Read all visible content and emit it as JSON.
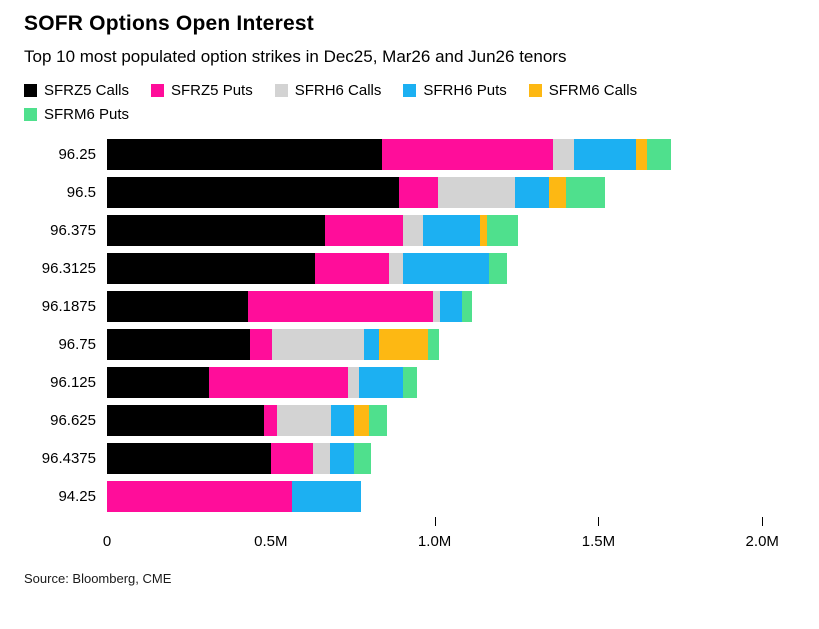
{
  "header": {
    "title": "SOFR Options Open Interest",
    "subtitle": "Top 10 most populated option strikes in Dec25, Mar26 and Jun26 tenors"
  },
  "source": "Source: Bloomberg, CME",
  "chart_data": {
    "type": "bar",
    "orientation": "horizontal",
    "stacked": true,
    "legend_position": "top",
    "grid": false,
    "categories": [
      "96.25",
      "96.5",
      "96.375",
      "96.3125",
      "96.1875",
      "96.75",
      "96.125",
      "96.625",
      "96.4375",
      "94.25"
    ],
    "series": [
      {
        "name": "SFRZ5 Calls",
        "color": "#000000",
        "values": [
          840000,
          890000,
          665000,
          635000,
          430000,
          435000,
          310000,
          480000,
          500000,
          0
        ]
      },
      {
        "name": "SFRZ5 Puts",
        "color": "#ff0d9a",
        "values": [
          520000,
          120000,
          240000,
          225000,
          565000,
          70000,
          425000,
          40000,
          130000,
          565000
        ]
      },
      {
        "name": "SFRH6 Calls",
        "color": "#d3d3d3",
        "values": [
          65000,
          235000,
          60000,
          45000,
          20000,
          280000,
          35000,
          165000,
          50000,
          0
        ]
      },
      {
        "name": "SFRH6 Puts",
        "color": "#1cb0f2",
        "values": [
          190000,
          105000,
          175000,
          260000,
          70000,
          45000,
          135000,
          70000,
          75000,
          210000
        ]
      },
      {
        "name": "SFRM6 Calls",
        "color": "#fdb813",
        "values": [
          33000,
          50000,
          20000,
          0,
          0,
          150000,
          0,
          45000,
          0,
          0
        ]
      },
      {
        "name": "SFRM6 Puts",
        "color": "#4fe08d",
        "values": [
          73000,
          120000,
          95000,
          55000,
          30000,
          35000,
          40000,
          55000,
          50000,
          0
        ]
      }
    ],
    "x_ticks": [
      "0",
      "0.5M",
      "1.0M",
      "1.5M",
      "2.0M"
    ],
    "x_tick_values": [
      0,
      500000,
      1000000,
      1500000,
      2000000
    ],
    "xlim": [
      0,
      2100000
    ],
    "xlabel": "",
    "ylabel": ""
  }
}
